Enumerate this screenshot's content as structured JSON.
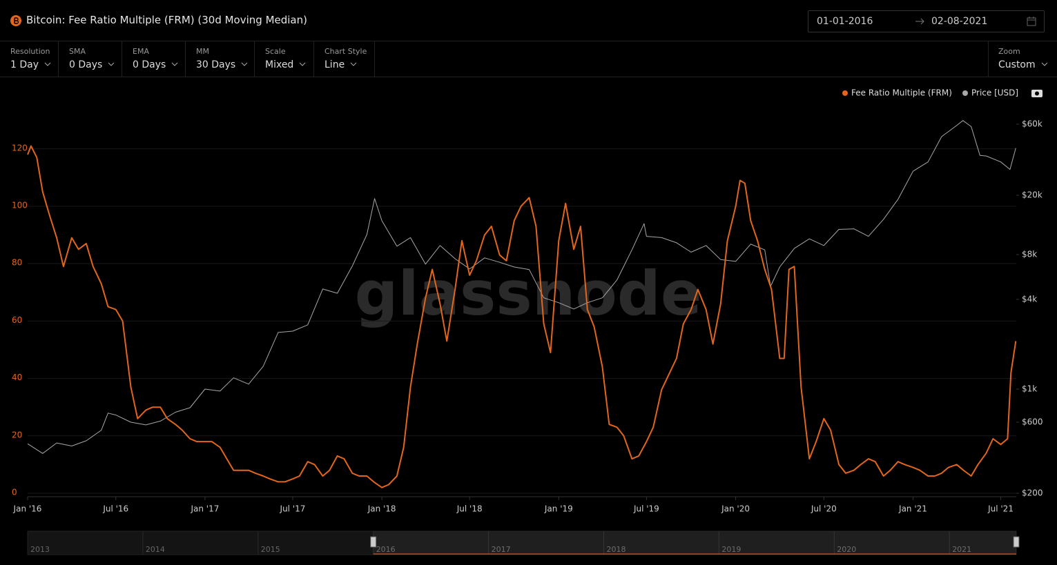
{
  "header": {
    "title": "Bitcoin: Fee Ratio Multiple (FRM) (30d Moving Median)",
    "date_from": "01-01-2016",
    "date_to": "02-08-2021"
  },
  "controls": [
    {
      "label": "Resolution",
      "value": "1 Day"
    },
    {
      "label": "SMA",
      "value": "0 Days"
    },
    {
      "label": "EMA",
      "value": "0 Days"
    },
    {
      "label": "MM",
      "value": "30 Days"
    },
    {
      "label": "Scale",
      "value": "Mixed"
    },
    {
      "label": "Chart Style",
      "value": "Line"
    }
  ],
  "zoom": {
    "label": "Zoom",
    "value": "Custom"
  },
  "watermark": "glassnode",
  "chart_data": {
    "type": "line",
    "xlim": [
      "2016-01-01",
      "2021-08-02"
    ],
    "xticks": [
      {
        "value": "2016-01-01",
        "label": "Jan '16"
      },
      {
        "value": "2016-07-01",
        "label": "Jul '16"
      },
      {
        "value": "2017-01-01",
        "label": "Jan '17"
      },
      {
        "value": "2017-07-01",
        "label": "Jul '17"
      },
      {
        "value": "2018-01-01",
        "label": "Jan '18"
      },
      {
        "value": "2018-07-01",
        "label": "Jul '18"
      },
      {
        "value": "2019-01-01",
        "label": "Jan '19"
      },
      {
        "value": "2019-07-01",
        "label": "Jul '19"
      },
      {
        "value": "2020-01-01",
        "label": "Jan '20"
      },
      {
        "value": "2020-07-01",
        "label": "Jul '20"
      },
      {
        "value": "2021-01-01",
        "label": "Jan '21"
      },
      {
        "value": "2021-07-01",
        "label": "Jul '21"
      }
    ],
    "ylim": [
      0,
      128.6
    ],
    "yticks": [
      0,
      20,
      40,
      60,
      80,
      100,
      120
    ],
    "y2lim": [
      200,
      60000
    ],
    "y2log": true,
    "y2ticks": [
      {
        "value": 200,
        "label": "$200"
      },
      {
        "value": 600,
        "label": "$600"
      },
      {
        "value": 1000,
        "label": "$1k"
      },
      {
        "value": 4000,
        "label": "$4k"
      },
      {
        "value": 8000,
        "label": "$8k"
      },
      {
        "value": 20000,
        "label": "$20k"
      },
      {
        "value": 60000,
        "label": "$60k"
      }
    ],
    "grid": true,
    "series": [
      {
        "name": "Fee Ratio Multiple (FRM)",
        "color": "#e3661b",
        "x": [
          "2016-01-01",
          "2016-01-08",
          "2016-01-20",
          "2016-02-01",
          "2016-02-15",
          "2016-03-01",
          "2016-03-15",
          "2016-04-01",
          "2016-04-15",
          "2016-05-01",
          "2016-05-15",
          "2016-06-01",
          "2016-06-15",
          "2016-07-01",
          "2016-07-15",
          "2016-08-01",
          "2016-08-15",
          "2016-09-01",
          "2016-09-15",
          "2016-10-01",
          "2016-10-15",
          "2016-11-01",
          "2016-11-15",
          "2016-12-01",
          "2016-12-15",
          "2017-01-01",
          "2017-01-15",
          "2017-02-01",
          "2017-02-15",
          "2017-03-01",
          "2017-03-15",
          "2017-04-01",
          "2017-04-15",
          "2017-05-01",
          "2017-05-15",
          "2017-06-01",
          "2017-06-15",
          "2017-07-01",
          "2017-07-15",
          "2017-08-01",
          "2017-08-15",
          "2017-09-01",
          "2017-09-15",
          "2017-10-01",
          "2017-10-15",
          "2017-11-01",
          "2017-11-15",
          "2017-12-01",
          "2017-12-15",
          "2018-01-01",
          "2018-01-15",
          "2018-02-01",
          "2018-02-15",
          "2018-03-01",
          "2018-03-15",
          "2018-04-01",
          "2018-04-15",
          "2018-05-01",
          "2018-05-15",
          "2018-06-01",
          "2018-06-15",
          "2018-07-01",
          "2018-07-15",
          "2018-08-01",
          "2018-08-15",
          "2018-09-01",
          "2018-09-15",
          "2018-10-01",
          "2018-10-15",
          "2018-11-01",
          "2018-11-15",
          "2018-12-01",
          "2018-12-15",
          "2019-01-01",
          "2019-01-15",
          "2019-02-01",
          "2019-02-15",
          "2019-03-01",
          "2019-03-15",
          "2019-04-01",
          "2019-04-15",
          "2019-05-01",
          "2019-05-15",
          "2019-06-01",
          "2019-06-15",
          "2019-07-01",
          "2019-07-15",
          "2019-08-01",
          "2019-08-15",
          "2019-09-01",
          "2019-09-15",
          "2019-10-01",
          "2019-10-15",
          "2019-11-01",
          "2019-11-15",
          "2019-12-01",
          "2019-12-15",
          "2020-01-01",
          "2020-01-10",
          "2020-01-20",
          "2020-02-01",
          "2020-02-15",
          "2020-03-01",
          "2020-03-15",
          "2020-04-01",
          "2020-04-10",
          "2020-04-20",
          "2020-05-01",
          "2020-05-15",
          "2020-06-01",
          "2020-06-15",
          "2020-07-01",
          "2020-07-15",
          "2020-08-01",
          "2020-08-15",
          "2020-09-01",
          "2020-09-15",
          "2020-10-01",
          "2020-10-15",
          "2020-11-01",
          "2020-11-15",
          "2020-12-01",
          "2020-12-15",
          "2021-01-01",
          "2021-01-15",
          "2021-02-01",
          "2021-02-15",
          "2021-03-01",
          "2021-03-15",
          "2021-04-01",
          "2021-04-15",
          "2021-05-01",
          "2021-05-15",
          "2021-06-01",
          "2021-06-15",
          "2021-07-01",
          "2021-07-15",
          "2021-07-22",
          "2021-08-01"
        ],
        "values": [
          118,
          121,
          117,
          105,
          97,
          89,
          79,
          89,
          85,
          87,
          79,
          73,
          65,
          64,
          60,
          37,
          26,
          29,
          30,
          30,
          26,
          24,
          22,
          19,
          18,
          18,
          18,
          16,
          12,
          8,
          8,
          8,
          7,
          6,
          5,
          4,
          4,
          5,
          6,
          11,
          10,
          6,
          8,
          13,
          12,
          7,
          6,
          6,
          4,
          2,
          3,
          6,
          16,
          37,
          52,
          68,
          78,
          66,
          53,
          71,
          88,
          76,
          81,
          90,
          93,
          83,
          81,
          95,
          100,
          103,
          93,
          59,
          49,
          88,
          101,
          85,
          93,
          64,
          58,
          44,
          24,
          23,
          20,
          12,
          13,
          18,
          23,
          36,
          41,
          47,
          59,
          64,
          71,
          64,
          52,
          66,
          88,
          100,
          109,
          108,
          95,
          88,
          78,
          71,
          47,
          47,
          78,
          79,
          37,
          12,
          18,
          26,
          22,
          10,
          7,
          8,
          10,
          12,
          11,
          6,
          8,
          11,
          10,
          9,
          8,
          6,
          6,
          7,
          9,
          10,
          8,
          6,
          10,
          14,
          19,
          17,
          19,
          42,
          53
        ]
      },
      {
        "name": "Price [USD]",
        "color": "#a8a8a8",
        "axis": "y2",
        "x": [
          "2016-01-01",
          "2016-02-01",
          "2016-03-01",
          "2016-04-01",
          "2016-05-01",
          "2016-06-01",
          "2016-06-15",
          "2016-07-01",
          "2016-08-01",
          "2016-09-01",
          "2016-10-01",
          "2016-11-01",
          "2016-12-01",
          "2017-01-01",
          "2017-02-01",
          "2017-03-01",
          "2017-04-01",
          "2017-05-01",
          "2017-06-01",
          "2017-07-01",
          "2017-08-01",
          "2017-09-01",
          "2017-10-01",
          "2017-11-01",
          "2017-12-01",
          "2017-12-17",
          "2018-01-01",
          "2018-02-01",
          "2018-03-01",
          "2018-04-01",
          "2018-05-01",
          "2018-06-01",
          "2018-07-01",
          "2018-08-01",
          "2018-09-01",
          "2018-10-01",
          "2018-11-01",
          "2018-12-01",
          "2019-01-01",
          "2019-02-01",
          "2019-03-01",
          "2019-04-01",
          "2019-05-01",
          "2019-06-01",
          "2019-06-26",
          "2019-07-01",
          "2019-08-01",
          "2019-09-01",
          "2019-10-01",
          "2019-11-01",
          "2019-12-01",
          "2020-01-01",
          "2020-02-01",
          "2020-03-01",
          "2020-03-13",
          "2020-04-01",
          "2020-05-01",
          "2020-06-01",
          "2020-07-01",
          "2020-08-01",
          "2020-09-01",
          "2020-10-01",
          "2020-11-01",
          "2020-12-01",
          "2021-01-01",
          "2021-02-01",
          "2021-03-01",
          "2021-04-01",
          "2021-04-14",
          "2021-05-01",
          "2021-05-19",
          "2021-06-01",
          "2021-07-01",
          "2021-07-20",
          "2021-08-01"
        ],
        "values": [
          430,
          370,
          435,
          415,
          450,
          530,
          690,
          670,
          600,
          575,
          610,
          700,
          750,
          1000,
          970,
          1190,
          1080,
          1420,
          2400,
          2450,
          2700,
          4700,
          4400,
          6700,
          10900,
          19000,
          13500,
          9100,
          10400,
          6900,
          9200,
          7500,
          6400,
          7600,
          7100,
          6600,
          6350,
          4100,
          3800,
          3450,
          3800,
          4100,
          5400,
          8600,
          12900,
          10600,
          10400,
          9600,
          8300,
          9200,
          7400,
          7200,
          9400,
          8600,
          4900,
          6600,
          8800,
          10200,
          9200,
          11800,
          11900,
          10600,
          13800,
          18800,
          29000,
          33500,
          49500,
          58800,
          63500,
          57800,
          37000,
          36700,
          33500,
          29800,
          41500
        ]
      }
    ]
  },
  "navigator": {
    "labels": [
      "2013",
      "2014",
      "2015",
      "2016",
      "2017",
      "2018",
      "2019",
      "2020",
      "2021"
    ]
  }
}
